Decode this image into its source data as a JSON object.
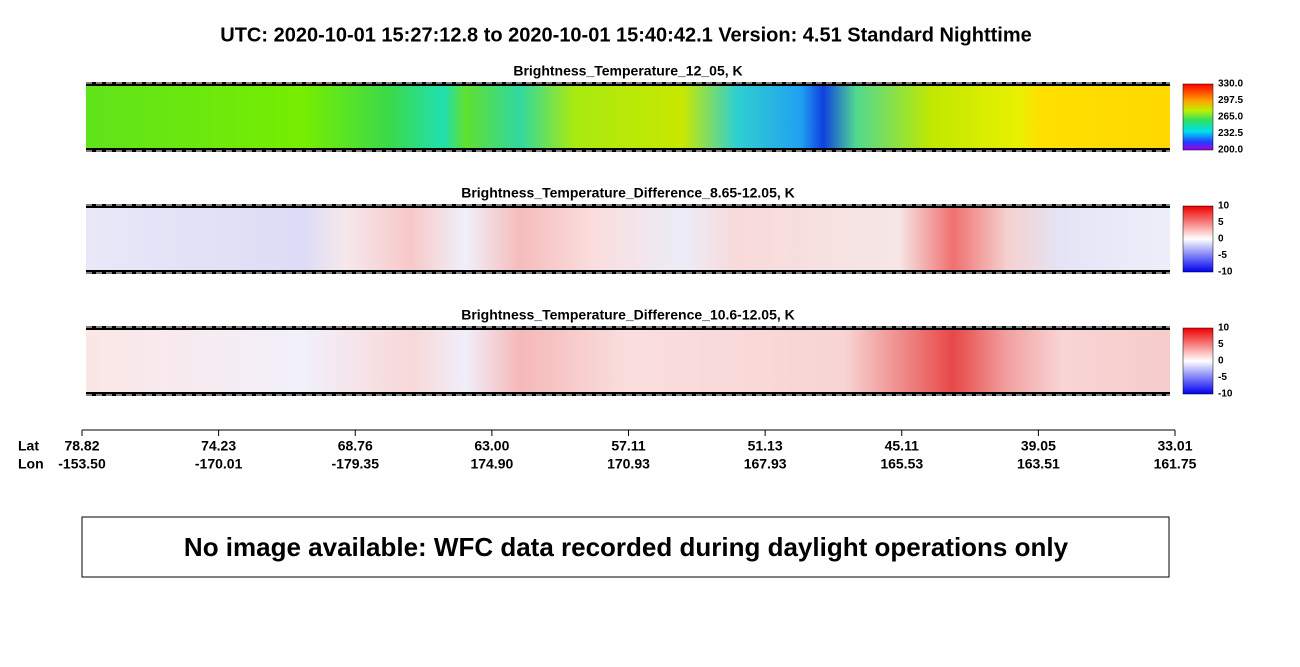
{
  "title": "UTC:  2020-10-01   15:27:12.8  to  2020-10-01   15:40:42.1    Version: 4.51  Standard Nighttime",
  "panels": [
    {
      "title": "Brightness_Temperature_12_05, K",
      "colorbar_ticks": [
        "330.0",
        "297.5",
        "265.0",
        "232.5",
        "200.0"
      ]
    },
    {
      "title": "Brightness_Temperature_Difference_8.65-12.05, K",
      "colorbar_ticks": [
        "10",
        "5",
        "0",
        "-5",
        "-10"
      ]
    },
    {
      "title": "Brightness_Temperature_Difference_10.6-12.05, K",
      "colorbar_ticks": [
        "10",
        "5",
        "0",
        "-5",
        "-10"
      ]
    }
  ],
  "axis": {
    "row_labels": [
      "Lat",
      "Lon"
    ],
    "ticks": [
      {
        "lat": "78.82",
        "lon": "-153.50"
      },
      {
        "lat": "74.23",
        "lon": "-170.01"
      },
      {
        "lat": "68.76",
        "lon": "-179.35"
      },
      {
        "lat": "63.00",
        "lon": "174.90"
      },
      {
        "lat": "57.11",
        "lon": "170.93"
      },
      {
        "lat": "51.13",
        "lon": "167.93"
      },
      {
        "lat": "45.11",
        "lon": "165.53"
      },
      {
        "lat": "39.05",
        "lon": "163.51"
      },
      {
        "lat": "33.01",
        "lon": "161.75"
      }
    ]
  },
  "notice": "No image available: WFC data recorded during daylight operations only"
}
